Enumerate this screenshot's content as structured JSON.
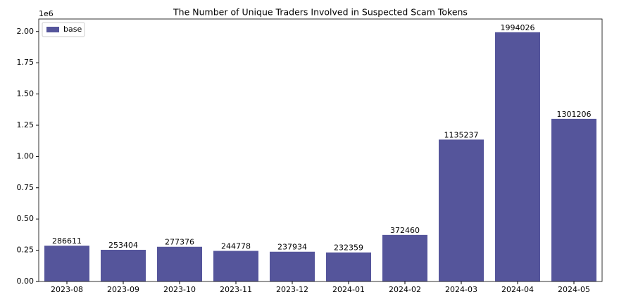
{
  "chart_data": {
    "type": "bar",
    "title": "The Number of Unique Traders Involved in Suspected Scam Tokens",
    "offset_label": "1e6",
    "categories": [
      "2023-08",
      "2023-09",
      "2023-10",
      "2023-11",
      "2023-12",
      "2024-01",
      "2024-02",
      "2024-03",
      "2024-04",
      "2024-05"
    ],
    "series": [
      {
        "name": "base",
        "color": "#55559b",
        "values": [
          286611,
          253404,
          277376,
          244778,
          237934,
          232359,
          372460,
          1135237,
          1994026,
          1301206
        ]
      }
    ],
    "ylim": [
      0,
      2100000
    ],
    "yticks": [
      {
        "value": 0,
        "label": "0.00"
      },
      {
        "value": 250000,
        "label": "0.25"
      },
      {
        "value": 500000,
        "label": "0.50"
      },
      {
        "value": 750000,
        "label": "0.75"
      },
      {
        "value": 1000000,
        "label": "1.00"
      },
      {
        "value": 1250000,
        "label": "1.25"
      },
      {
        "value": 1500000,
        "label": "1.50"
      },
      {
        "value": 1750000,
        "label": "1.75"
      },
      {
        "value": 2000000,
        "label": "2.00"
      }
    ],
    "legend": "upper left"
  }
}
